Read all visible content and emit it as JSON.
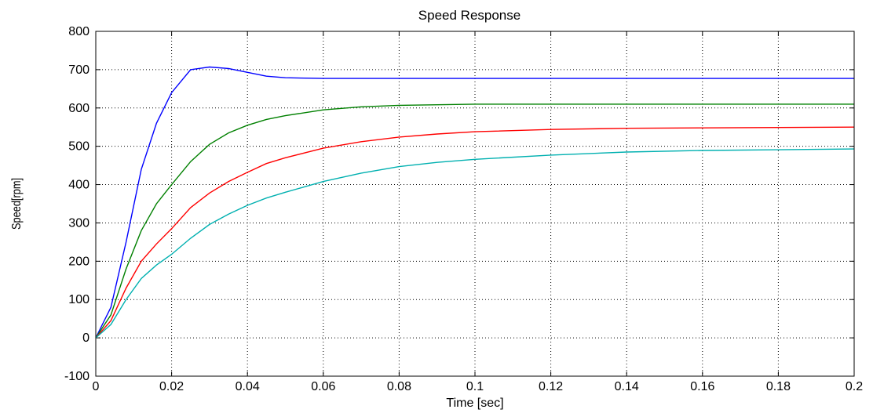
{
  "chart_data": {
    "type": "line",
    "title": "Speed Response",
    "xlabel": "Time [sec]",
    "ylabel": "Speed[rpm]",
    "xlim": [
      0,
      0.2
    ],
    "ylim": [
      -100,
      800
    ],
    "grid": true,
    "legend": "none",
    "xticks": [
      "0",
      "0.02",
      "0.04",
      "0.06",
      "0.08",
      "0.1",
      "0.12",
      "0.14",
      "0.16",
      "0.18",
      "0.2"
    ],
    "yticks": [
      "-100",
      "0",
      "100",
      "200",
      "300",
      "400",
      "500",
      "600",
      "700",
      "800"
    ],
    "series": [
      {
        "color": "#0000ff",
        "points": [
          [
            0,
            0
          ],
          [
            0.004,
            80
          ],
          [
            0.008,
            250
          ],
          [
            0.012,
            440
          ],
          [
            0.016,
            560
          ],
          [
            0.02,
            640
          ],
          [
            0.025,
            700
          ],
          [
            0.03,
            707
          ],
          [
            0.035,
            703
          ],
          [
            0.04,
            693
          ],
          [
            0.045,
            683
          ],
          [
            0.05,
            679
          ],
          [
            0.06,
            677
          ],
          [
            0.08,
            677
          ],
          [
            0.1,
            677
          ],
          [
            0.12,
            677
          ],
          [
            0.14,
            677
          ],
          [
            0.16,
            677
          ],
          [
            0.18,
            677
          ],
          [
            0.2,
            677
          ]
        ]
      },
      {
        "color": "#008000",
        "points": [
          [
            0,
            0
          ],
          [
            0.004,
            60
          ],
          [
            0.008,
            180
          ],
          [
            0.012,
            280
          ],
          [
            0.016,
            350
          ],
          [
            0.02,
            400
          ],
          [
            0.025,
            460
          ],
          [
            0.03,
            505
          ],
          [
            0.035,
            535
          ],
          [
            0.04,
            555
          ],
          [
            0.045,
            570
          ],
          [
            0.05,
            580
          ],
          [
            0.06,
            595
          ],
          [
            0.07,
            603
          ],
          [
            0.08,
            607
          ],
          [
            0.1,
            610
          ],
          [
            0.12,
            610
          ],
          [
            0.14,
            610
          ],
          [
            0.16,
            610
          ],
          [
            0.18,
            610
          ],
          [
            0.2,
            610
          ]
        ]
      },
      {
        "color": "#ff0000",
        "points": [
          [
            0,
            0
          ],
          [
            0.004,
            45
          ],
          [
            0.008,
            130
          ],
          [
            0.012,
            200
          ],
          [
            0.016,
            245
          ],
          [
            0.02,
            285
          ],
          [
            0.025,
            340
          ],
          [
            0.03,
            378
          ],
          [
            0.035,
            408
          ],
          [
            0.04,
            432
          ],
          [
            0.045,
            455
          ],
          [
            0.05,
            470
          ],
          [
            0.06,
            495
          ],
          [
            0.07,
            512
          ],
          [
            0.08,
            524
          ],
          [
            0.09,
            532
          ],
          [
            0.1,
            538
          ],
          [
            0.12,
            544
          ],
          [
            0.14,
            547
          ],
          [
            0.16,
            548
          ],
          [
            0.18,
            549
          ],
          [
            0.2,
            550
          ]
        ]
      },
      {
        "color": "#00b0b0",
        "points": [
          [
            0,
            0
          ],
          [
            0.004,
            35
          ],
          [
            0.008,
            100
          ],
          [
            0.012,
            155
          ],
          [
            0.016,
            190
          ],
          [
            0.02,
            218
          ],
          [
            0.025,
            260
          ],
          [
            0.03,
            296
          ],
          [
            0.035,
            323
          ],
          [
            0.04,
            346
          ],
          [
            0.045,
            365
          ],
          [
            0.05,
            380
          ],
          [
            0.06,
            408
          ],
          [
            0.07,
            430
          ],
          [
            0.08,
            447
          ],
          [
            0.09,
            458
          ],
          [
            0.1,
            466
          ],
          [
            0.12,
            477
          ],
          [
            0.14,
            485
          ],
          [
            0.16,
            489
          ],
          [
            0.18,
            491
          ],
          [
            0.2,
            493
          ]
        ]
      }
    ]
  }
}
